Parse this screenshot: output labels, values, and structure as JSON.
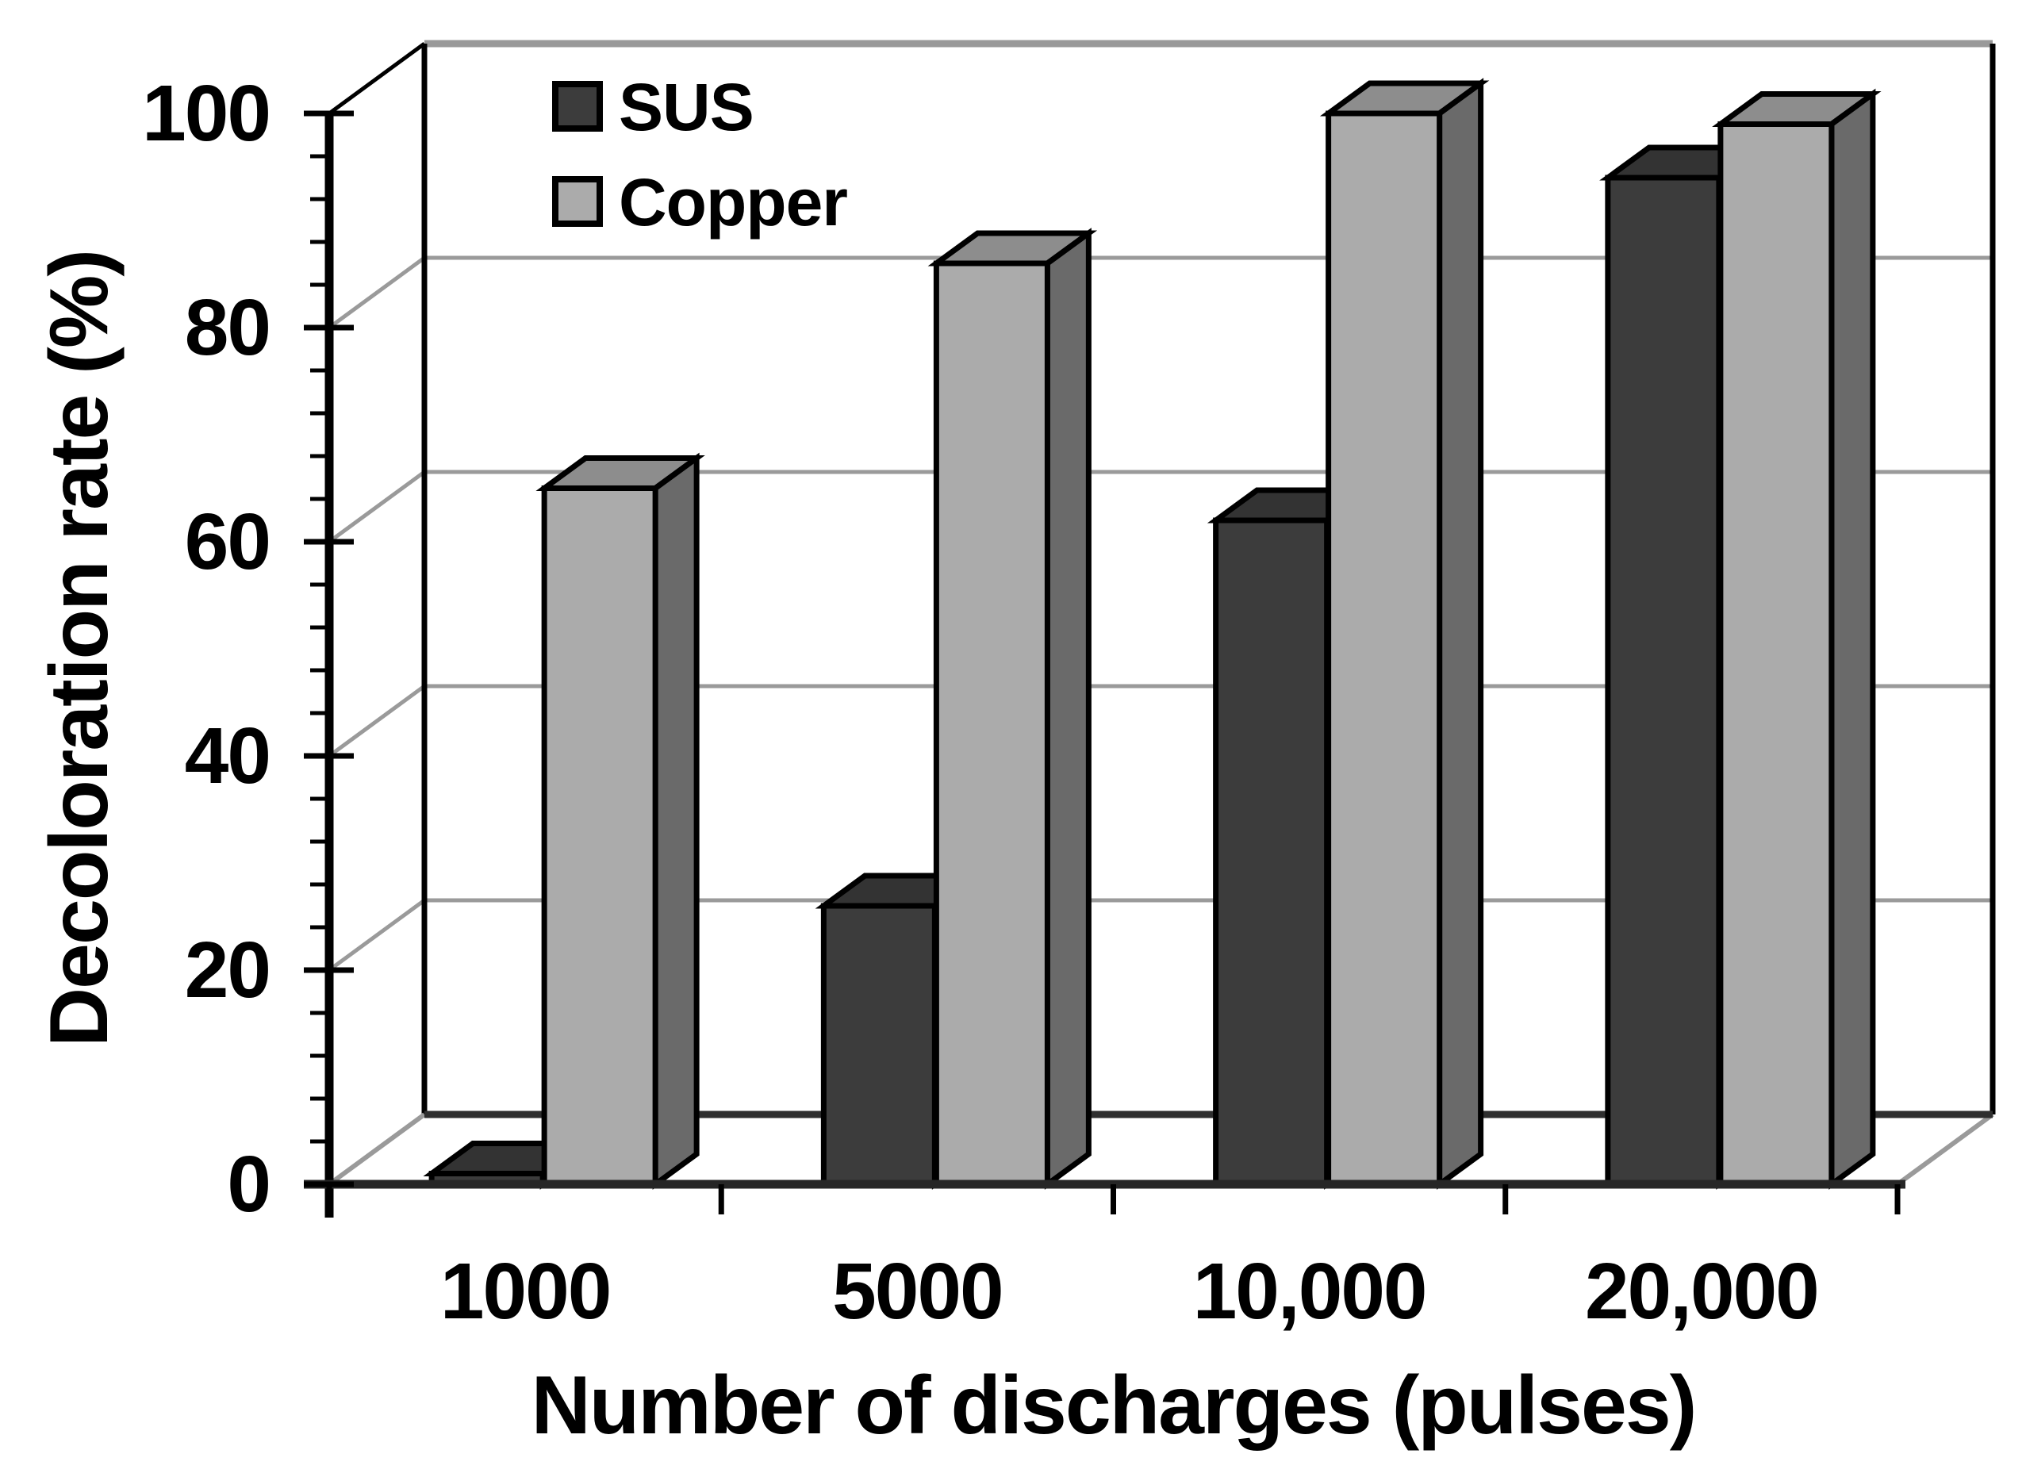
{
  "chart_data": {
    "type": "bar",
    "variant": "3d-clustered-column",
    "title": "",
    "xlabel": "Number of discharges (pulses)",
    "ylabel": "Decoloration rate (%)",
    "categories": [
      "1000",
      "5000",
      "10,000",
      "20,000"
    ],
    "series": [
      {
        "name": "SUS",
        "values": [
          1,
          26,
          62,
          94
        ],
        "color_front": "#3C3C3C",
        "color_top": "#333333",
        "color_side": "#272727"
      },
      {
        "name": "Copper",
        "values": [
          65,
          86,
          100,
          99
        ],
        "color_front": "#ABABAB",
        "color_top": "#8D8D8D",
        "color_side": "#6A6A6A"
      }
    ],
    "ylim": [
      0,
      100
    ],
    "ytick_step": 20,
    "yticks": [
      "0",
      "20",
      "40",
      "60",
      "80",
      "100"
    ],
    "minor_tick_step": 4,
    "grid": true,
    "grid_color": "#9A9A9A",
    "axis_color": "#000000",
    "wall_top_color": "#999999",
    "floor_back_color": "#2F2F2F",
    "background": "#FFFFFF",
    "legend_position": "top-left-inside",
    "legend": {
      "items": [
        "SUS",
        "Copper"
      ]
    }
  }
}
